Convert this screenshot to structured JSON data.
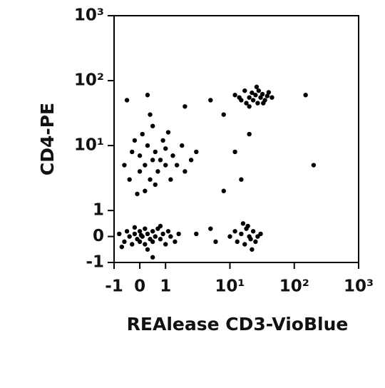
{
  "chart_data": {
    "type": "scatter",
    "xlabel": "REAlease CD3-VioBlue",
    "ylabel": "CD4-PE",
    "xscale": "biexponential",
    "yscale": "biexponential",
    "xlim": [
      -1,
      1000
    ],
    "ylim": [
      -1,
      1000
    ],
    "xticks": [
      -1,
      0,
      1,
      {
        "value": 10,
        "label": "10¹"
      },
      {
        "value": 100,
        "label": "10²"
      },
      {
        "value": 1000,
        "label": "10³"
      }
    ],
    "yticks": [
      -1,
      0,
      1,
      {
        "value": 10,
        "label": "10¹"
      },
      {
        "value": 100,
        "label": "10²"
      },
      {
        "value": 1000,
        "label": "10³"
      }
    ],
    "series": [
      {
        "color": "#000000",
        "x": [
          -0.8,
          -0.6,
          -0.5,
          -0.4,
          -0.3,
          -0.2,
          -0.1,
          0,
          0,
          0.1,
          0.2,
          0.2,
          0.3,
          0.4,
          0.5,
          0.5,
          0.6,
          0.7,
          0.8,
          0.9,
          1,
          1.1,
          1.2,
          1.4,
          -0.7,
          0.3,
          0.8,
          -0.2,
          1.6,
          0.05,
          -0.6,
          -0.4,
          -0.3,
          -0.2,
          0,
          0,
          0.1,
          0.2,
          0.3,
          0.4,
          0.5,
          0.5,
          0.6,
          0.7,
          0.8,
          0.9,
          1,
          1,
          1.2,
          1.3,
          1.5,
          1.8,
          2,
          2.5,
          3,
          0.2,
          0.6,
          -0.1,
          0.4,
          1.1,
          12,
          15,
          17,
          18,
          20,
          22,
          23,
          25,
          27,
          28,
          30,
          32,
          35,
          38,
          40,
          45,
          20,
          26,
          14,
          33,
          10,
          12,
          13,
          15,
          17,
          18,
          20,
          21,
          23,
          25,
          27,
          30,
          16,
          22,
          19,
          5,
          8,
          3,
          6,
          15,
          20,
          -0.5,
          0.3,
          2,
          150,
          200,
          8,
          12,
          5,
          0.5
        ],
        "y": [
          0.1,
          -0.2,
          0.2,
          0,
          -0.3,
          0.1,
          -0.1,
          0.2,
          -0.2,
          0,
          0.3,
          -0.3,
          0.1,
          -0.1,
          0.2,
          -0.2,
          0,
          0.3,
          -0.1,
          0.1,
          -0.3,
          0.2,
          0,
          -0.2,
          -0.4,
          -0.5,
          0.4,
          0.35,
          0.1,
          0.05,
          5,
          3,
          8,
          12,
          4,
          7,
          15,
          5,
          10,
          3,
          6,
          20,
          8,
          4,
          6,
          12,
          5,
          9,
          3,
          7,
          5,
          10,
          4,
          6,
          8,
          2,
          2.5,
          1.8,
          30,
          16,
          60,
          50,
          70,
          45,
          55,
          65,
          50,
          60,
          45,
          70,
          55,
          62,
          50,
          58,
          66,
          55,
          40,
          80,
          55,
          45,
          0,
          0.2,
          -0.2,
          0.1,
          -0.3,
          0.3,
          0,
          -0.1,
          0.2,
          -0.2,
          0,
          0.1,
          0.5,
          -0.5,
          0.4,
          50,
          30,
          0.1,
          -0.2,
          3,
          15,
          50,
          60,
          40,
          60,
          5,
          2,
          8,
          0.3,
          -0.8
        ]
      }
    ]
  }
}
